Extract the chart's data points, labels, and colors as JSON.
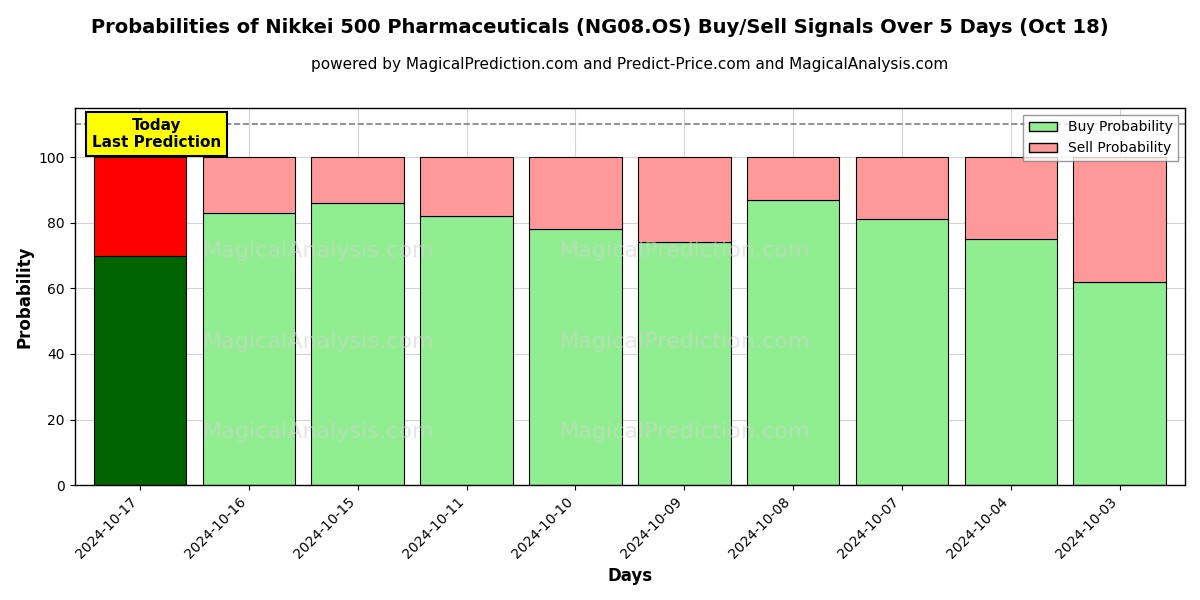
{
  "title": "Probabilities of Nikkei 500 Pharmaceuticals (NG08.OS) Buy/Sell Signals Over 5 Days (Oct 18)",
  "subtitle": "powered by MagicalPrediction.com and Predict-Price.com and MagicalAnalysis.com",
  "xlabel": "Days",
  "ylabel": "Probability",
  "dates": [
    "2024-10-17",
    "2024-10-16",
    "2024-10-15",
    "2024-10-11",
    "2024-10-10",
    "2024-10-09",
    "2024-10-08",
    "2024-10-07",
    "2024-10-04",
    "2024-10-03"
  ],
  "buy_probs": [
    70,
    83,
    86,
    82,
    78,
    74,
    87,
    81,
    75,
    62
  ],
  "sell_probs": [
    30,
    17,
    14,
    18,
    22,
    26,
    13,
    19,
    25,
    38
  ],
  "buy_color_today": "#006400",
  "sell_color_today": "#ff0000",
  "buy_color_other": "#90EE90",
  "sell_color_other": "#FF9999",
  "bar_edge_color": "#000000",
  "today_annotation_bg": "#FFFF00",
  "today_annotation_text": "Today\nLast Prediction",
  "ylim": [
    0,
    115
  ],
  "yticks": [
    0,
    20,
    40,
    60,
    80,
    100
  ],
  "legend_buy": "Buy Probability",
  "legend_sell": "Sell Probability",
  "watermark1": "MagicalAnalysis.com",
  "watermark2": "MagicalPrediction.com",
  "dashed_line_y": 110,
  "title_fontsize": 14,
  "subtitle_fontsize": 11,
  "axis_label_fontsize": 12,
  "tick_fontsize": 10,
  "bar_width": 0.85
}
